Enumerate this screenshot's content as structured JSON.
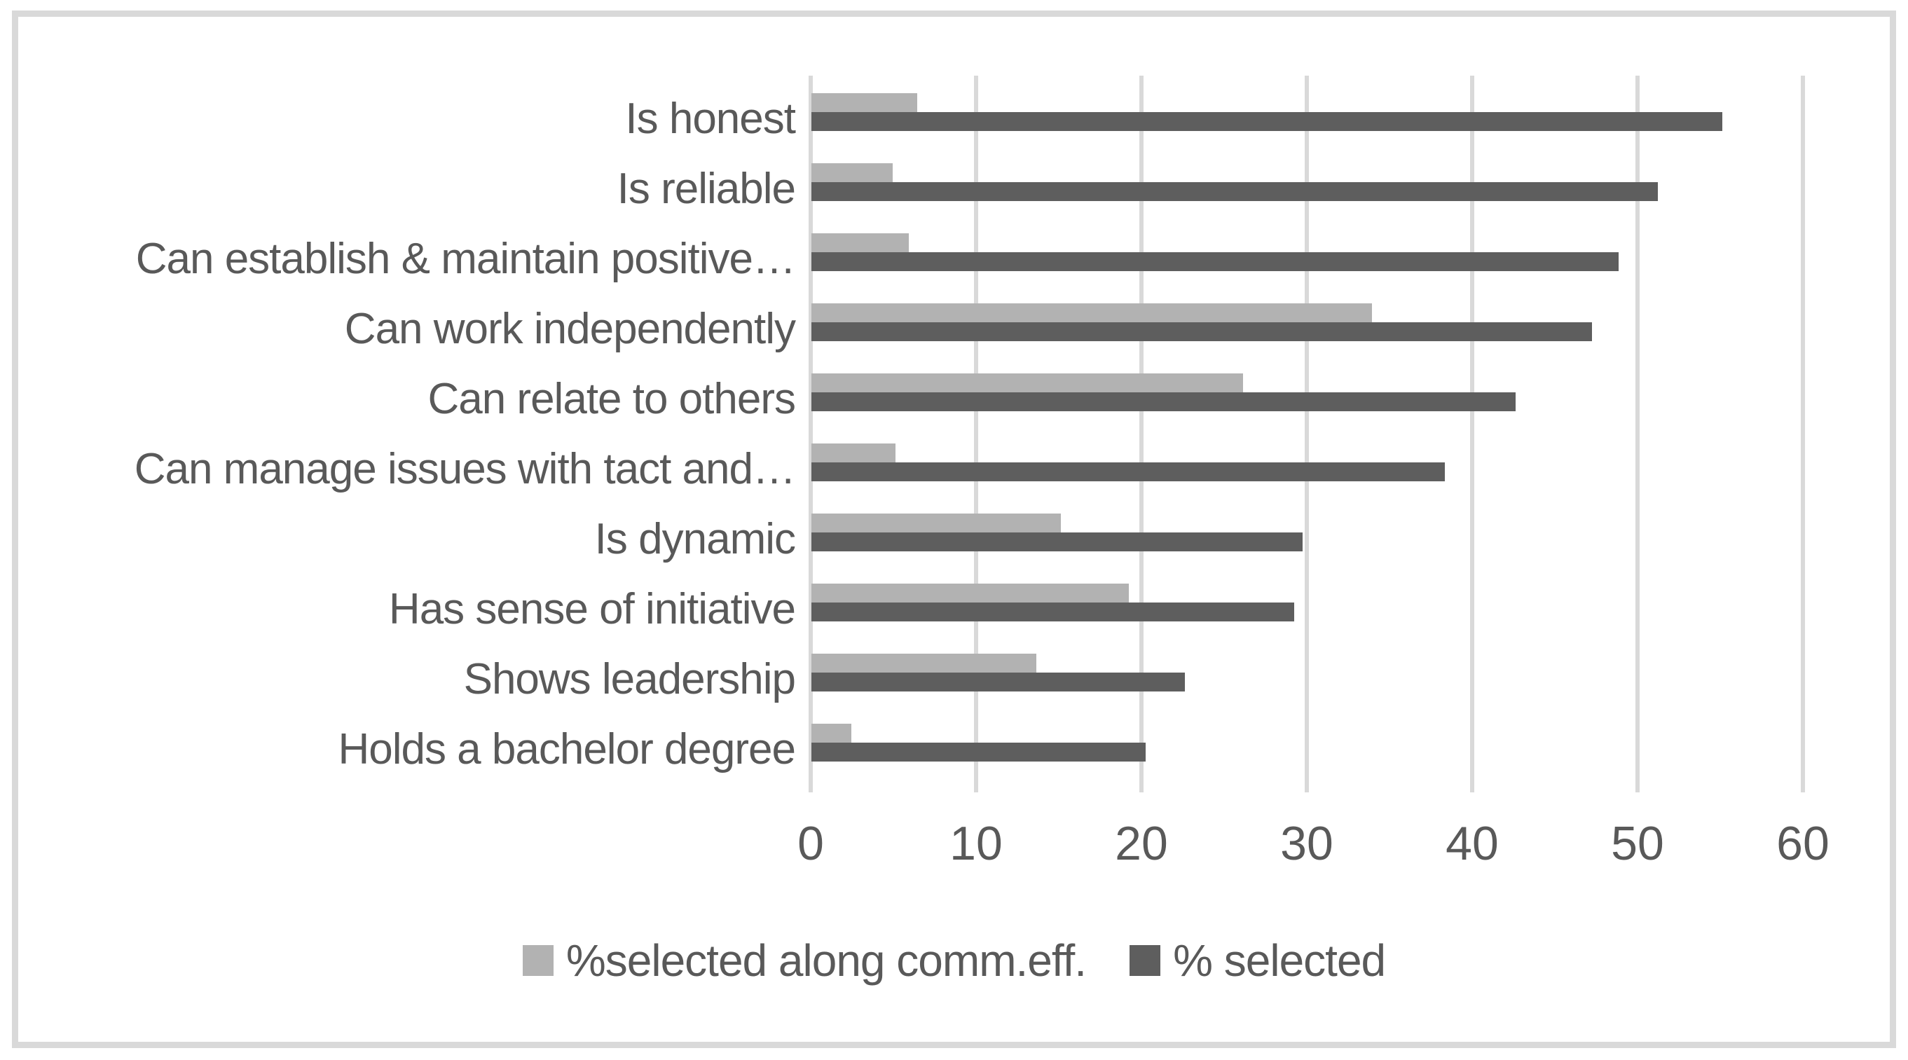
{
  "chart_data": {
    "type": "bar",
    "orientation": "horizontal",
    "title": "",
    "xlabel": "",
    "ylabel": "",
    "categories": [
      "Is honest",
      "Is reliable",
      "Can establish & maintain positive…",
      "Can work independently",
      "Can relate to others",
      "Can manage issues with tact and…",
      "Is dynamic",
      "Has sense of initiative",
      "Shows leadership",
      "Holds a bachelor degree"
    ],
    "series": [
      {
        "name": "%selected along comm.eff.",
        "color": "#b2b2b2",
        "values": [
          6.4,
          4.9,
          5.9,
          33.9,
          26.1,
          5.1,
          15.1,
          19.2,
          13.6,
          2.4
        ]
      },
      {
        "name": "% selected",
        "color": "#5e5e5e",
        "values": [
          55.1,
          51.2,
          48.8,
          47.2,
          42.6,
          38.3,
          29.7,
          29.2,
          22.6,
          20.2
        ]
      }
    ],
    "xlim": [
      0,
      60
    ],
    "xticks": [
      0,
      10,
      20,
      30,
      40,
      50,
      60
    ],
    "grid": true,
    "legend_position": "bottom"
  },
  "colors": {
    "background": "#ffffff",
    "frame_border": "#d9d9d9",
    "gridline": "#d9d9d9",
    "text": "#595959",
    "series_light": "#b2b2b2",
    "series_dark": "#5e5e5e"
  }
}
